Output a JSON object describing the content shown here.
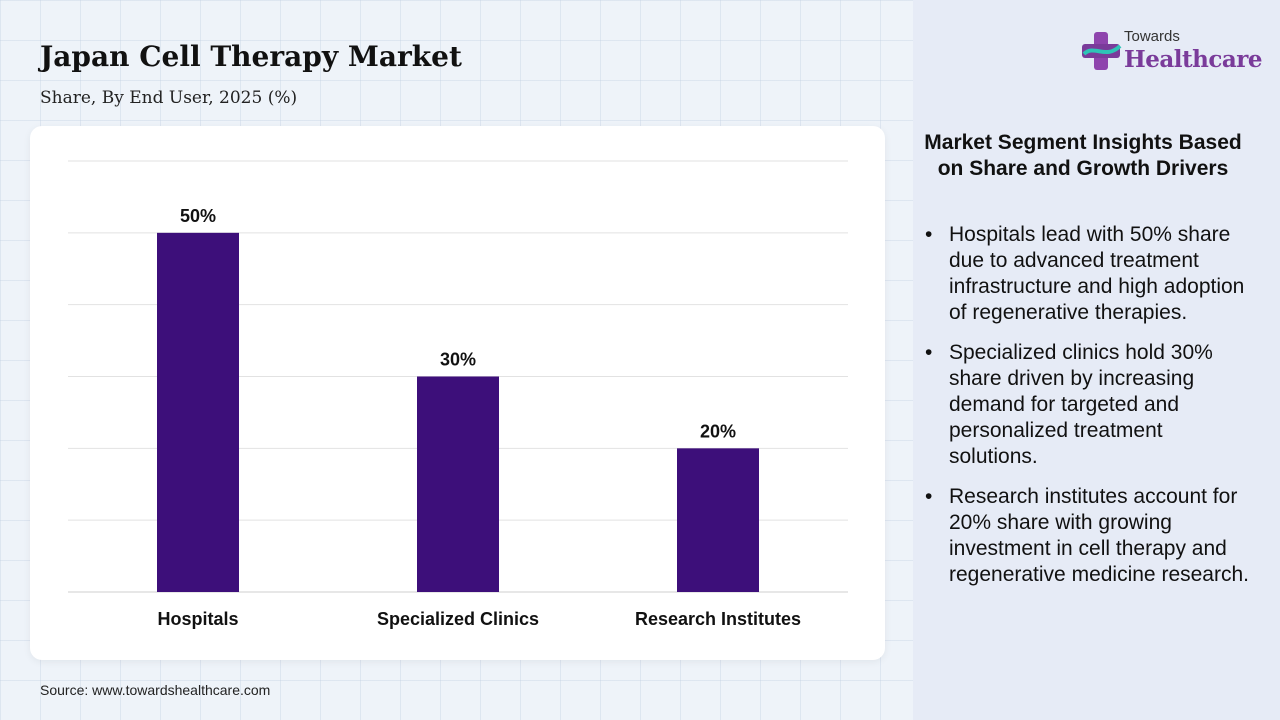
{
  "header": {
    "title": "Japan Cell Therapy Market",
    "subtitle": "Share, By End User, 2025 (%)"
  },
  "logo": {
    "top_text": "Towards",
    "main_text": "Healthcare",
    "icon": "medical-cross-icon"
  },
  "chart_data": {
    "type": "bar",
    "categories": [
      "Hospitals",
      "Specialized Clinics",
      "Research Institutes"
    ],
    "values": [
      50,
      30,
      20
    ],
    "data_labels": [
      "50%",
      "30%",
      "20%"
    ],
    "ylim": [
      0,
      60
    ],
    "grid": true,
    "bar_color": "#3d0f7a"
  },
  "insights": {
    "title": "Market Segment Insights Based on Share and Growth Drivers",
    "items": [
      "Hospitals lead with 50% share due to advanced treatment infrastructure and high adoption of regenerative therapies.",
      "Specialized clinics hold 30% share driven by increasing demand for targeted and personalized treatment solutions.",
      "Research institutes account for 20% share with growing investment in cell therapy and regenerative medicine research."
    ]
  },
  "footer": {
    "source": "Source: www.towardshealthcare.com"
  },
  "colors": {
    "bar": "#3d0f7a",
    "logo_accent": "#7a3b9a",
    "panel_bg": "#e6ebf6"
  }
}
